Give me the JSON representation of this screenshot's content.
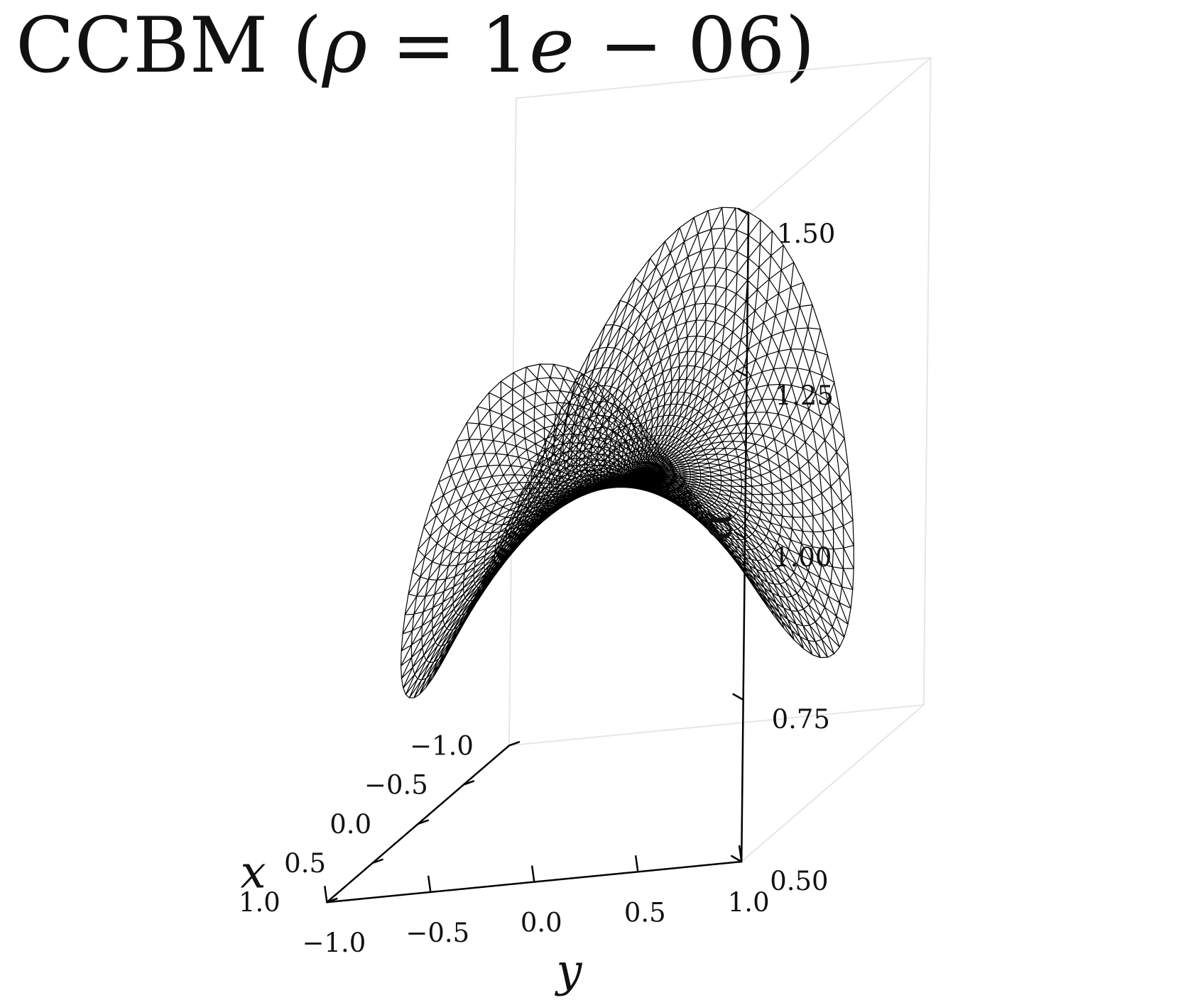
{
  "chart_data": {
    "type": "surface3d-wireframe",
    "title": {
      "prefix": "CCBM (",
      "rho": "ρ",
      "eq": " = 1",
      "e": "e",
      "rest": " − 06)"
    },
    "xlabel": "x",
    "ylabel": "y",
    "zlabel": "α",
    "x_ticks": [
      "−1.0",
      "−0.5",
      "0.0",
      "0.5",
      "1.0"
    ],
    "x_tick_values": [
      -1.0,
      -0.5,
      0.0,
      0.5,
      1.0
    ],
    "y_ticks": [
      "−1.0",
      "−0.5",
      "0.0",
      "0.5",
      "1.0"
    ],
    "y_tick_values": [
      -1.0,
      -0.5,
      0.0,
      0.5,
      1.0
    ],
    "z_ticks": [
      "0.50",
      "0.75",
      "1.00",
      "1.25",
      "1.50"
    ],
    "z_tick_values": [
      0.5,
      0.75,
      1.0,
      1.25,
      1.5
    ],
    "xlim": [
      -1.0,
      1.0
    ],
    "ylim": [
      -1.0,
      1.0
    ],
    "zlim": [
      0.5,
      1.5
    ],
    "domain": "unit disk x^2 + y^2 <= 1",
    "surface": "saddle, approx. alpha = 1 + 0.3*(x^2 - y^2)",
    "alpha_range": [
      0.7,
      1.3
    ],
    "mesh": "triangular",
    "grid": false,
    "colors": {
      "mesh": "#000000",
      "axes": "#000000",
      "box": "#e6e6e6"
    }
  }
}
